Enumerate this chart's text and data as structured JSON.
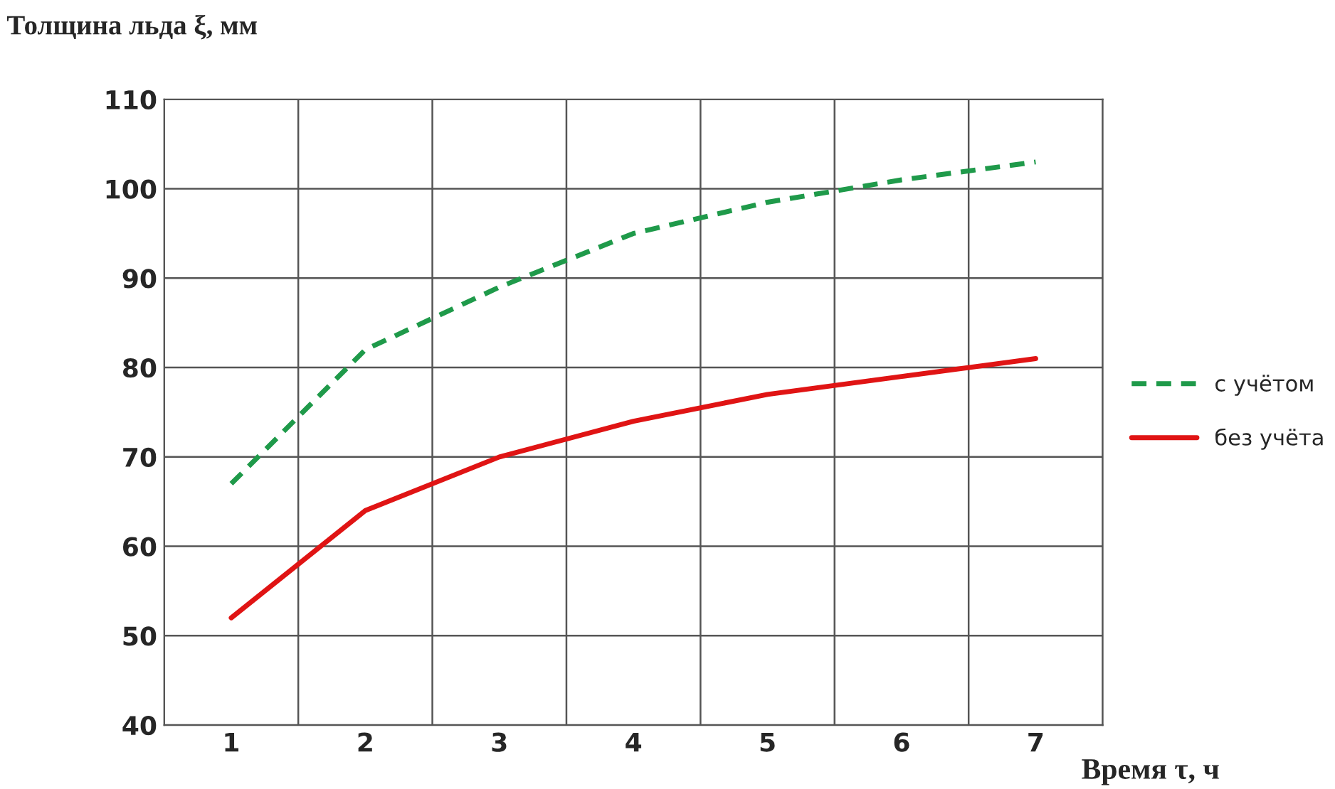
{
  "chart_data": {
    "type": "line",
    "xlabel": "Время τ, ч",
    "ylabel": "Толщина льда ξ, мм",
    "categories": [
      "1",
      "2",
      "3",
      "4",
      "5",
      "6",
      "7"
    ],
    "series": [
      {
        "name": "с учётом",
        "color": "#1f9a4a",
        "line_style": "dashed",
        "values": [
          67,
          82,
          89,
          95,
          98.5,
          101,
          103
        ]
      },
      {
        "name": "без учёта",
        "color": "#e01414",
        "line_style": "solid",
        "values": [
          52,
          64,
          70,
          74,
          77,
          79,
          81
        ]
      }
    ],
    "ylim": [
      40,
      110
    ],
    "yticks": [
      40,
      50,
      60,
      70,
      80,
      90,
      100,
      110
    ],
    "grid": true,
    "legend": "right",
    "marker": "none"
  }
}
